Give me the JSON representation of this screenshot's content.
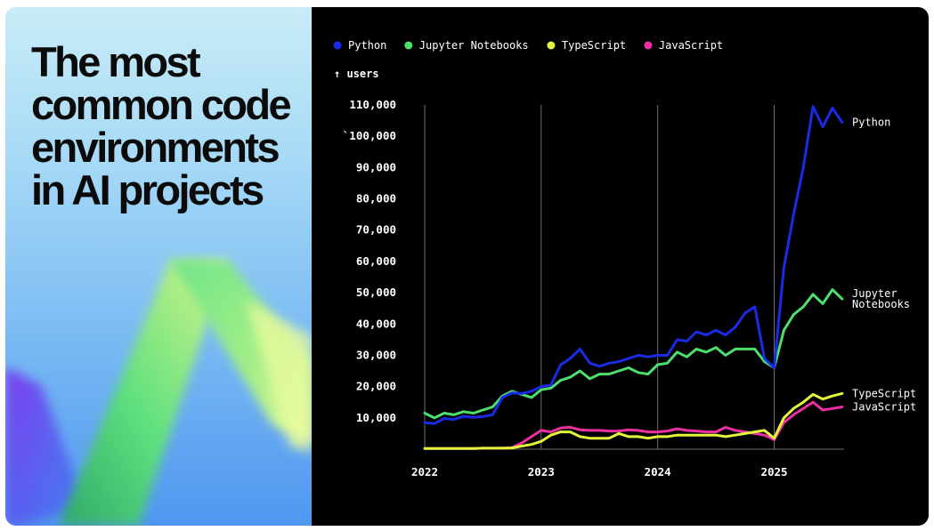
{
  "headline": {
    "lines": [
      "The most",
      "common code",
      "environments",
      "in AI projects"
    ]
  },
  "chart_data": {
    "type": "line",
    "ylabel": "↑ users",
    "xlabel": "",
    "ylim": [
      0,
      110000
    ],
    "xlim": [
      2022.0,
      2025.6
    ],
    "grid": "x-only",
    "legend": "top",
    "y_ticks": [
      {
        "value": 10000,
        "label": "10,000"
      },
      {
        "value": 20000,
        "label": "20,000"
      },
      {
        "value": 30000,
        "label": "30,000"
      },
      {
        "value": 40000,
        "label": "40,000"
      },
      {
        "value": 50000,
        "label": "50,000"
      },
      {
        "value": 60000,
        "label": "60,000"
      },
      {
        "value": 70000,
        "label": "70,000"
      },
      {
        "value": 80000,
        "label": "80,000"
      },
      {
        "value": 90000,
        "label": "90,000"
      },
      {
        "value": 100000,
        "label": "`100,000"
      },
      {
        "value": 110000,
        "label": "110,000"
      }
    ],
    "x_ticks": [
      {
        "value": 2022,
        "label": "2022"
      },
      {
        "value": 2023,
        "label": "2023"
      },
      {
        "value": 2024,
        "label": "2024"
      },
      {
        "value": 2025,
        "label": "2025"
      }
    ],
    "series": [
      {
        "name": "Python",
        "color": "#1a2be6",
        "end_label": [
          "Python"
        ],
        "points": [
          [
            2022.0,
            8500
          ],
          [
            2022.083,
            8200
          ],
          [
            2022.167,
            9800
          ],
          [
            2022.25,
            9500
          ],
          [
            2022.333,
            10500
          ],
          [
            2022.417,
            10200
          ],
          [
            2022.5,
            10400
          ],
          [
            2022.583,
            11000
          ],
          [
            2022.667,
            16500
          ],
          [
            2022.75,
            18000
          ],
          [
            2022.833,
            17800
          ],
          [
            2022.917,
            18500
          ],
          [
            2023.0,
            20000
          ],
          [
            2023.083,
            20500
          ],
          [
            2023.167,
            27000
          ],
          [
            2023.25,
            29000
          ],
          [
            2023.333,
            32000
          ],
          [
            2023.417,
            27500
          ],
          [
            2023.5,
            26500
          ],
          [
            2023.583,
            27500
          ],
          [
            2023.667,
            28000
          ],
          [
            2023.75,
            29000
          ],
          [
            2023.833,
            30000
          ],
          [
            2023.917,
            29500
          ],
          [
            2024.0,
            30000
          ],
          [
            2024.083,
            30000
          ],
          [
            2024.167,
            35000
          ],
          [
            2024.25,
            34500
          ],
          [
            2024.333,
            37500
          ],
          [
            2024.417,
            36500
          ],
          [
            2024.5,
            38000
          ],
          [
            2024.583,
            36500
          ],
          [
            2024.667,
            39000
          ],
          [
            2024.75,
            43500
          ],
          [
            2024.833,
            45500
          ],
          [
            2024.917,
            29000
          ],
          [
            2025.0,
            26000
          ],
          [
            2025.083,
            58000
          ],
          [
            2025.167,
            75000
          ],
          [
            2025.25,
            90000
          ],
          [
            2025.333,
            109500
          ],
          [
            2025.417,
            103000
          ],
          [
            2025.5,
            109000
          ],
          [
            2025.583,
            104500
          ]
        ]
      },
      {
        "name": "Jupyter Notebooks",
        "color": "#4ddf6e",
        "end_label": [
          "Jupyter",
          "Notebooks"
        ],
        "points": [
          [
            2022.0,
            11500
          ],
          [
            2022.083,
            10000
          ],
          [
            2022.167,
            11500
          ],
          [
            2022.25,
            11000
          ],
          [
            2022.333,
            12000
          ],
          [
            2022.417,
            11500
          ],
          [
            2022.5,
            12500
          ],
          [
            2022.583,
            13500
          ],
          [
            2022.667,
            17000
          ],
          [
            2022.75,
            18500
          ],
          [
            2022.833,
            17500
          ],
          [
            2022.917,
            16500
          ],
          [
            2023.0,
            19000
          ],
          [
            2023.083,
            19500
          ],
          [
            2023.167,
            22000
          ],
          [
            2023.25,
            23000
          ],
          [
            2023.333,
            25000
          ],
          [
            2023.417,
            22500
          ],
          [
            2023.5,
            24000
          ],
          [
            2023.583,
            24000
          ],
          [
            2023.667,
            25000
          ],
          [
            2023.75,
            26000
          ],
          [
            2023.833,
            24500
          ],
          [
            2023.917,
            24000
          ],
          [
            2024.0,
            27000
          ],
          [
            2024.083,
            27500
          ],
          [
            2024.167,
            31000
          ],
          [
            2024.25,
            29500
          ],
          [
            2024.333,
            32000
          ],
          [
            2024.417,
            31000
          ],
          [
            2024.5,
            32500
          ],
          [
            2024.583,
            30000
          ],
          [
            2024.667,
            32000
          ],
          [
            2024.75,
            32000
          ],
          [
            2024.833,
            32000
          ],
          [
            2024.917,
            28000
          ],
          [
            2025.0,
            26000
          ],
          [
            2025.083,
            38000
          ],
          [
            2025.167,
            43000
          ],
          [
            2025.25,
            45500
          ],
          [
            2025.333,
            49500
          ],
          [
            2025.417,
            46500
          ],
          [
            2025.5,
            51000
          ],
          [
            2025.583,
            48000
          ]
        ]
      },
      {
        "name": "TypeScript",
        "color": "#e3f53b",
        "end_label": [
          "TypeScript"
        ],
        "points": [
          [
            2022.0,
            200
          ],
          [
            2022.083,
            200
          ],
          [
            2022.167,
            200
          ],
          [
            2022.25,
            200
          ],
          [
            2022.333,
            200
          ],
          [
            2022.417,
            200
          ],
          [
            2022.5,
            300
          ],
          [
            2022.583,
            300
          ],
          [
            2022.667,
            300
          ],
          [
            2022.75,
            400
          ],
          [
            2022.833,
            1000
          ],
          [
            2022.917,
            1500
          ],
          [
            2023.0,
            2500
          ],
          [
            2023.083,
            4500
          ],
          [
            2023.167,
            5500
          ],
          [
            2023.25,
            5500
          ],
          [
            2023.333,
            4000
          ],
          [
            2023.417,
            3500
          ],
          [
            2023.5,
            3500
          ],
          [
            2023.583,
            3500
          ],
          [
            2023.667,
            5000
          ],
          [
            2023.75,
            4000
          ],
          [
            2023.833,
            4000
          ],
          [
            2023.917,
            3500
          ],
          [
            2024.0,
            4000
          ],
          [
            2024.083,
            4000
          ],
          [
            2024.167,
            4500
          ],
          [
            2024.25,
            4500
          ],
          [
            2024.333,
            4500
          ],
          [
            2024.417,
            4500
          ],
          [
            2024.5,
            4500
          ],
          [
            2024.583,
            4000
          ],
          [
            2024.667,
            4500
          ],
          [
            2024.75,
            5000
          ],
          [
            2024.833,
            5500
          ],
          [
            2024.917,
            6000
          ],
          [
            2025.0,
            3500
          ],
          [
            2025.083,
            10000
          ],
          [
            2025.167,
            13000
          ],
          [
            2025.25,
            15000
          ],
          [
            2025.333,
            17500
          ],
          [
            2025.417,
            16000
          ],
          [
            2025.5,
            17000
          ],
          [
            2025.583,
            17800
          ]
        ]
      },
      {
        "name": "JavaScript",
        "color": "#ee2fa2",
        "end_label": [
          "JavaScript"
        ],
        "points": [
          [
            2022.0,
            200
          ],
          [
            2022.083,
            200
          ],
          [
            2022.167,
            200
          ],
          [
            2022.25,
            200
          ],
          [
            2022.333,
            200
          ],
          [
            2022.417,
            200
          ],
          [
            2022.5,
            300
          ],
          [
            2022.583,
            300
          ],
          [
            2022.667,
            300
          ],
          [
            2022.75,
            500
          ],
          [
            2022.833,
            2000
          ],
          [
            2022.917,
            4000
          ],
          [
            2023.0,
            6000
          ],
          [
            2023.083,
            5500
          ],
          [
            2023.167,
            6800
          ],
          [
            2023.25,
            7000
          ],
          [
            2023.333,
            6200
          ],
          [
            2023.417,
            6000
          ],
          [
            2023.5,
            6000
          ],
          [
            2023.583,
            5800
          ],
          [
            2023.667,
            5800
          ],
          [
            2023.75,
            6200
          ],
          [
            2023.833,
            6000
          ],
          [
            2023.917,
            5500
          ],
          [
            2024.0,
            5500
          ],
          [
            2024.083,
            5800
          ],
          [
            2024.167,
            6500
          ],
          [
            2024.25,
            6000
          ],
          [
            2024.333,
            5800
          ],
          [
            2024.417,
            5500
          ],
          [
            2024.5,
            5500
          ],
          [
            2024.583,
            7000
          ],
          [
            2024.667,
            6000
          ],
          [
            2024.75,
            5500
          ],
          [
            2024.833,
            5000
          ],
          [
            2024.917,
            4500
          ],
          [
            2025.0,
            3000
          ],
          [
            2025.083,
            8500
          ],
          [
            2025.167,
            11000
          ],
          [
            2025.25,
            13000
          ],
          [
            2025.333,
            15000
          ],
          [
            2025.417,
            12500
          ],
          [
            2025.5,
            13000
          ],
          [
            2025.583,
            13500
          ]
        ]
      }
    ]
  }
}
